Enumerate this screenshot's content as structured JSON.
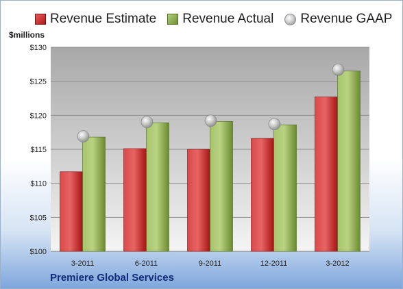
{
  "legend": {
    "estimate": "Revenue Estimate",
    "actual": "Revenue Actual",
    "gaap": "Revenue GAAP"
  },
  "unit_label": "$millions",
  "company": "Premiere Global Services",
  "colors": {
    "estimate": "#c62828",
    "actual": "#8aa84a",
    "gaap": "#bdbdbd",
    "company_text": "#0e2a78"
  },
  "chart_data": {
    "type": "bar",
    "categories": [
      "3-2011",
      "6-2011",
      "9-2011",
      "12-2011",
      "3-2012"
    ],
    "series": [
      {
        "name": "Revenue Estimate",
        "values": [
          111.7,
          115.1,
          115.0,
          116.6,
          122.7
        ]
      },
      {
        "name": "Revenue Actual",
        "values": [
          116.8,
          118.9,
          119.1,
          118.6,
          126.5
        ]
      },
      {
        "name": "Revenue GAAP",
        "values": [
          116.9,
          119.0,
          119.2,
          118.7,
          126.7
        ],
        "marker": "circle"
      }
    ],
    "yticks": [
      "$100",
      "$105",
      "$110",
      "$115",
      "$120",
      "$125",
      "$130"
    ],
    "ylim": [
      100,
      130
    ],
    "grid": true,
    "legend_position": "top"
  }
}
